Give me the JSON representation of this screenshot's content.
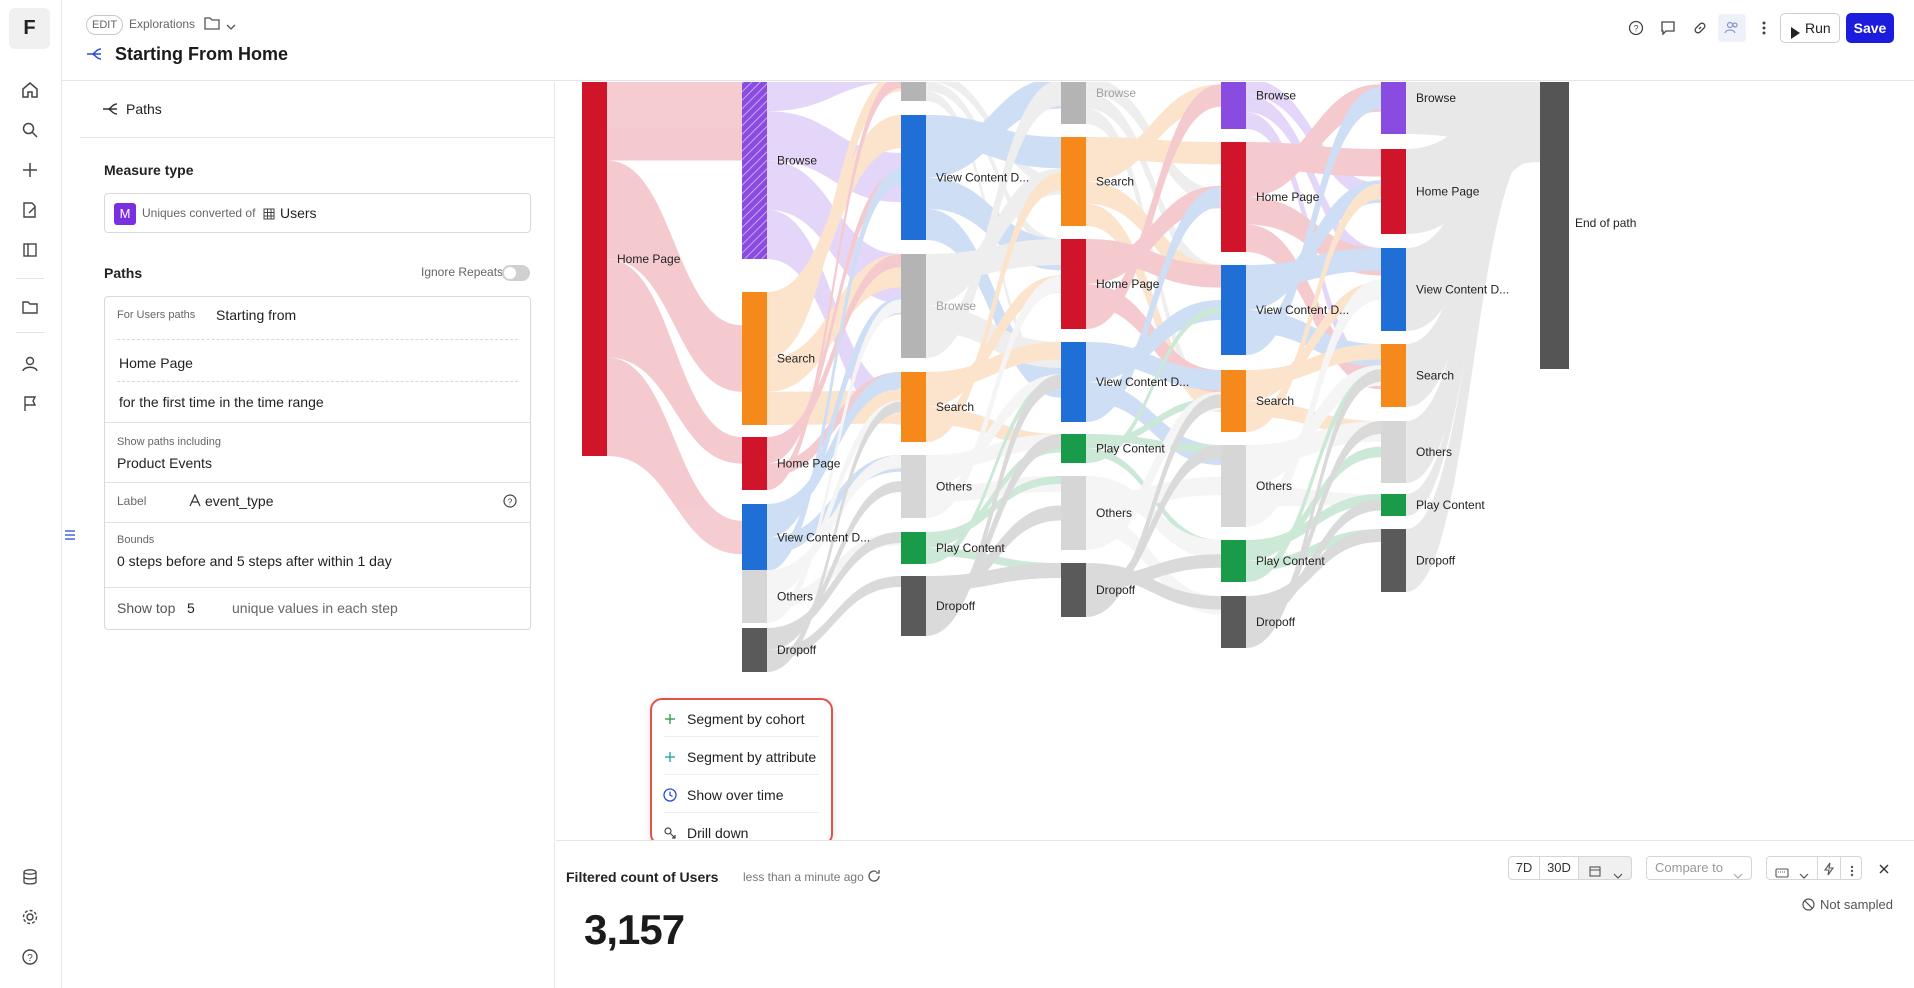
{
  "app": {
    "logo": "F",
    "edit_badge": "EDIT",
    "breadcrumb": "Explorations",
    "title": "Starting From Home",
    "run_label": "Run",
    "save_label": "Save"
  },
  "rail": {
    "icons": [
      "home-icon",
      "search-icon",
      "plus-icon",
      "edit-doc-icon",
      "book-icon",
      "folder-icon",
      "user-icon",
      "flag-icon",
      "database-icon",
      "gear-icon",
      "help-icon"
    ]
  },
  "panel": {
    "tab_label": "Paths",
    "measure_type_title": "Measure type",
    "measure_badge": "M",
    "measure_prefix": "Uniques converted of",
    "measure_entity": "Users",
    "paths_title": "Paths",
    "ignore_repeats": "Ignore Repeats",
    "for_users_label": "For Users paths",
    "starting_from": "Starting from",
    "start_event": "Home Page",
    "first_time": "for the first time in the time range",
    "show_paths_label": "Show paths including",
    "product_events": "Product Events",
    "label_label": "Label",
    "label_value": "event_type",
    "bounds_label": "Bounds",
    "bounds_value": "0 steps before and 5 steps after within 1 day",
    "show_top_label": "Show top",
    "show_top_value": "5",
    "show_top_suffix": "unique values in each step"
  },
  "context_menu": {
    "items": [
      {
        "label": "Segment by cohort",
        "icon": "plus-icon"
      },
      {
        "label": "Segment by attribute",
        "icon": "plus-icon"
      },
      {
        "label": "Show over time",
        "icon": "clock-icon"
      },
      {
        "label": "Drill down",
        "icon": "drill-icon"
      }
    ]
  },
  "bottom": {
    "metric_title": "Filtered count of Users",
    "updated": "less than a minute ago",
    "value": "3,157",
    "btn_7d": "7D",
    "btn_30d": "30D",
    "compare_to": "Compare to",
    "not_sampled": "Not sampled"
  },
  "colors": {
    "home": "#d0152a",
    "browse": "#8a4be0",
    "search": "#f5891b",
    "view": "#1f6fd6",
    "play": "#1a9b4a",
    "others": "#d6d6d6",
    "dropoff": "#5a5a5a",
    "endpath": "#555555",
    "accent": "#1c1cdc"
  },
  "chart_data": {
    "type": "sankey",
    "steps": [
      {
        "nodes": [
          {
            "label": "Home Page",
            "color": "#d0152a"
          }
        ]
      },
      {
        "nodes": [
          {
            "label": "Browse",
            "color": "#8a4be0"
          },
          {
            "label": "Search",
            "color": "#f5891b"
          },
          {
            "label": "Home Page",
            "color": "#d0152a"
          },
          {
            "label": "View Content D...",
            "color": "#1f6fd6"
          },
          {
            "label": "Others",
            "color": "#d6d6d6"
          },
          {
            "label": "Dropoff",
            "color": "#5a5a5a"
          }
        ]
      },
      {
        "nodes": [
          {
            "label": "",
            "color": "#b4b4b4"
          },
          {
            "label": "View Content D...",
            "color": "#1f6fd6"
          },
          {
            "label": "Browse",
            "color": "#b4b4b4"
          },
          {
            "label": "Search",
            "color": "#f5891b"
          },
          {
            "label": "Others",
            "color": "#d6d6d6"
          },
          {
            "label": "Play Content",
            "color": "#1a9b4a"
          },
          {
            "label": "Dropoff",
            "color": "#5a5a5a"
          }
        ]
      },
      {
        "nodes": [
          {
            "label": "Browse",
            "color": "#b4b4b4"
          },
          {
            "label": "Search",
            "color": "#f5891b"
          },
          {
            "label": "Home Page",
            "color": "#d0152a"
          },
          {
            "label": "View Content D...",
            "color": "#1f6fd6"
          },
          {
            "label": "Play Content",
            "color": "#1a9b4a"
          },
          {
            "label": "Others",
            "color": "#d6d6d6"
          },
          {
            "label": "Dropoff",
            "color": "#5a5a5a"
          }
        ]
      },
      {
        "nodes": [
          {
            "label": "Browse",
            "color": "#8a4be0"
          },
          {
            "label": "Home Page",
            "color": "#d0152a"
          },
          {
            "label": "View Content D...",
            "color": "#1f6fd6"
          },
          {
            "label": "Search",
            "color": "#f5891b"
          },
          {
            "label": "Others",
            "color": "#d6d6d6"
          },
          {
            "label": "Play Content",
            "color": "#1a9b4a"
          },
          {
            "label": "Dropoff",
            "color": "#5a5a5a"
          }
        ]
      },
      {
        "nodes": [
          {
            "label": "Browse",
            "color": "#8a4be0"
          },
          {
            "label": "Home Page",
            "color": "#d0152a"
          },
          {
            "label": "View Content D...",
            "color": "#1f6fd6"
          },
          {
            "label": "Search",
            "color": "#f5891b"
          },
          {
            "label": "Others",
            "color": "#d6d6d6"
          },
          {
            "label": "Play Content",
            "color": "#1a9b4a"
          },
          {
            "label": "Dropoff",
            "color": "#5a5a5a"
          }
        ]
      },
      {
        "nodes": [
          {
            "label": "End of path",
            "color": "#555555"
          }
        ]
      }
    ]
  }
}
